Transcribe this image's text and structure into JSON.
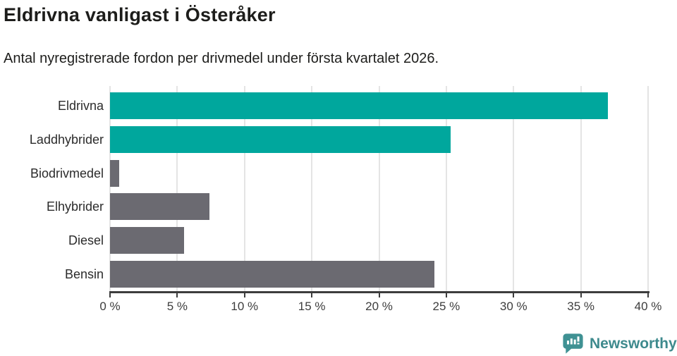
{
  "header": {
    "title": "Eldrivna vanligast i Österåker",
    "subtitle": "Antal nyregistrerade fordon per drivmedel under första kvartalet 2026."
  },
  "chart_data": {
    "type": "bar",
    "orientation": "horizontal",
    "title": "Eldrivna vanligast i Österåker",
    "xlabel": "",
    "ylabel": "",
    "unit": "%",
    "categories": [
      "Eldrivna",
      "Laddhybrider",
      "Biodrivmedel",
      "Elhybrider",
      "Diesel",
      "Bensin"
    ],
    "values": [
      37.0,
      25.3,
      0.7,
      7.4,
      5.5,
      24.1
    ],
    "bar_colors": [
      "#00a79d",
      "#00a79d",
      "#6b6a71",
      "#6b6a71",
      "#6b6a71",
      "#6b6a71"
    ],
    "xlim": [
      0,
      40
    ],
    "x_ticks": [
      0,
      5,
      10,
      15,
      20,
      25,
      30,
      35,
      40
    ],
    "x_tick_labels": [
      "0 %",
      "5 %",
      "10 %",
      "15 %",
      "20 %",
      "25 %",
      "30 %",
      "35 %",
      "40 %"
    ],
    "grid": true,
    "legend": "none"
  },
  "colors": {
    "accent_teal": "#00a79d",
    "neutral_gray": "#6b6a71",
    "axis": "#3d3d3d",
    "gridline": "#e4e4e4",
    "text": "#1d1d1b",
    "brand": "#3e8a8d"
  },
  "footer": {
    "brand": "Newsworthy"
  }
}
